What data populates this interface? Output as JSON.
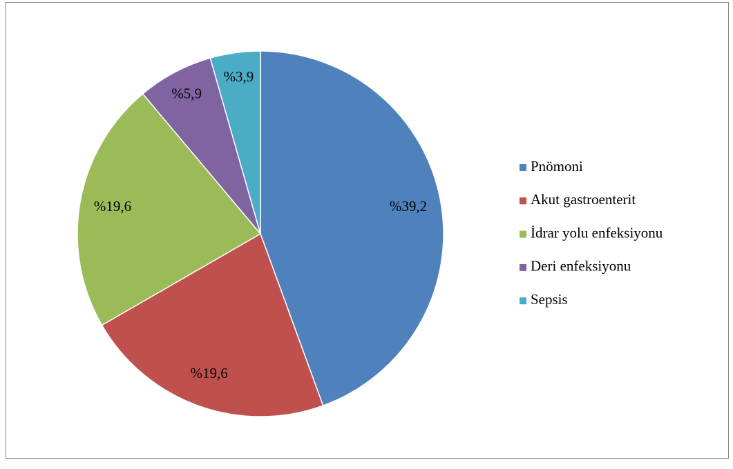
{
  "chart_data": {
    "type": "pie",
    "categories": [
      "Pnömoni",
      "Akut gastroenterit",
      "İdrar yolu enfeksiyonu",
      "Deri enfeksiyonu",
      "Sepsis"
    ],
    "values": [
      39.2,
      19.6,
      19.6,
      5.9,
      3.9
    ],
    "value_labels": [
      "%39,2",
      "%19,6",
      "%19,6",
      "%5,9",
      "%3,9"
    ],
    "colors": [
      "#4f81bd",
      "#c0504d",
      "#9bbb59",
      "#8064a2",
      "#4bacc6"
    ],
    "legend": "right"
  }
}
